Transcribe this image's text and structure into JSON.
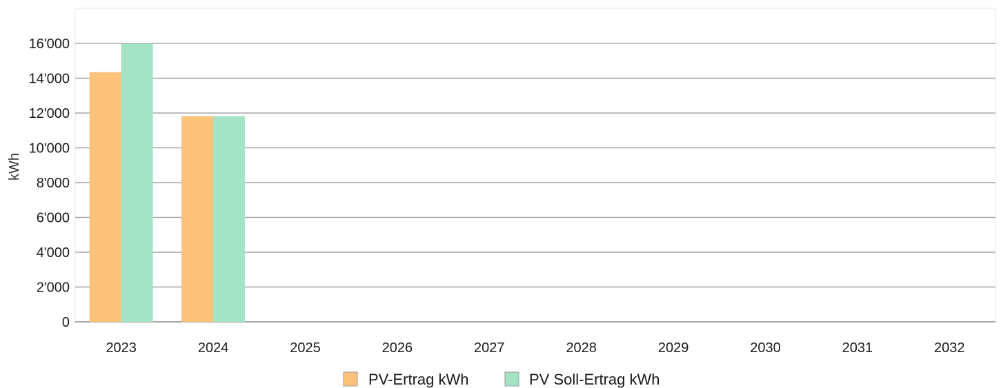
{
  "chart_data": {
    "type": "bar",
    "categories": [
      "2023",
      "2024",
      "2025",
      "2026",
      "2027",
      "2028",
      "2029",
      "2030",
      "2031",
      "2032"
    ],
    "series": [
      {
        "name": "PV-Ertrag kWh",
        "color": "#fdc27a",
        "values": [
          14350,
          11820,
          0,
          0,
          0,
          0,
          0,
          0,
          0,
          0
        ]
      },
      {
        "name": "PV Soll-Ertrag kWh",
        "color": "#a5e3c7",
        "values": [
          15980,
          11820,
          0,
          0,
          0,
          0,
          0,
          0,
          0,
          0
        ]
      }
    ],
    "ylabel": "kWh",
    "ylim": [
      0,
      18000
    ],
    "yticks": [
      0,
      2000,
      4000,
      6000,
      8000,
      10000,
      12000,
      14000,
      16000
    ],
    "ytick_labels": [
      "0",
      "2'000",
      "4'000",
      "6'000",
      "8'000",
      "10'000",
      "12'000",
      "14'000",
      "16'000"
    ],
    "grid": true,
    "legend_position": "bottom-center"
  }
}
